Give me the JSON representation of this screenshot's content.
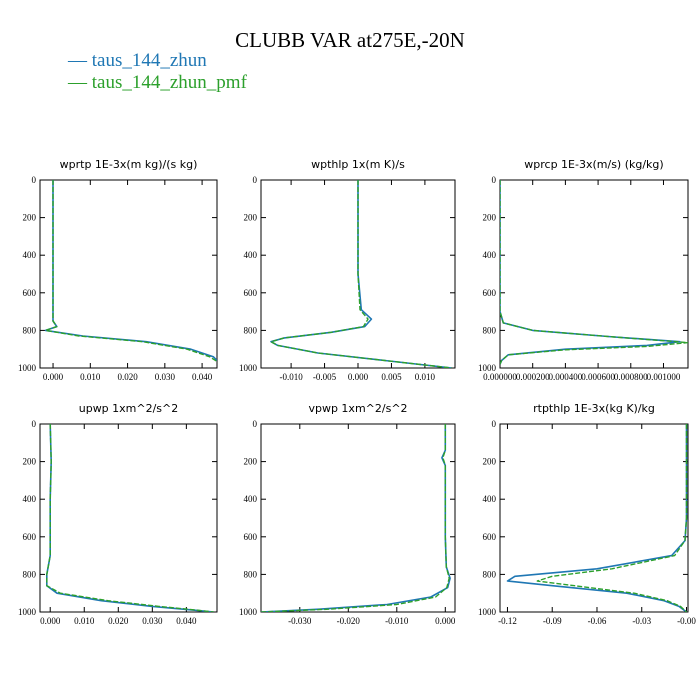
{
  "title": "CLUBB VAR at275E,-20N",
  "legend": [
    {
      "name": "taus_144_zhun",
      "color": "#1f77b4"
    },
    {
      "name": "taus_144_zhun_pmf",
      "color": "#2ca02c"
    }
  ],
  "chart_data": [
    {
      "type": "line",
      "title": "wprtp  1E-3x(m kg)/(s kg)",
      "xlim": [
        -0.0035,
        0.044
      ],
      "ylim": [
        1000,
        0
      ],
      "xticks": [
        0.0,
        0.01,
        0.02,
        0.03,
        0.04
      ],
      "xtick_labels": [
        "0.000",
        "0.010",
        "0.020",
        "0.030",
        "0.040"
      ],
      "yticks": [
        0,
        200,
        400,
        600,
        800,
        1000
      ],
      "series": [
        {
          "name": "taus_144_zhun",
          "x": [
            0,
            0,
            0,
            0,
            0.001,
            -0.002,
            0.008,
            0.025,
            0.037,
            0.043,
            0.044
          ],
          "y": [
            0,
            300,
            600,
            750,
            780,
            800,
            830,
            860,
            900,
            940,
            960
          ]
        },
        {
          "name": "taus_144_zhun_pmf",
          "x": [
            0,
            0,
            0,
            0,
            0.001,
            -0.002,
            0.007,
            0.024,
            0.036,
            0.042,
            0.044
          ],
          "y": [
            0,
            300,
            600,
            750,
            780,
            800,
            830,
            860,
            900,
            940,
            965
          ]
        }
      ]
    },
    {
      "type": "line",
      "title": "wpthlp  1x(m K)/s",
      "xlim": [
        -0.0145,
        0.0145
      ],
      "ylim": [
        1000,
        0
      ],
      "xticks": [
        -0.01,
        -0.005,
        0.0,
        0.005,
        0.01
      ],
      "xtick_labels": [
        "-0.010",
        "-0.005",
        "0.000",
        "0.005",
        "0.010"
      ],
      "yticks": [
        0,
        200,
        400,
        600,
        800,
        1000
      ],
      "series": [
        {
          "name": "taus_144_zhun",
          "x": [
            0,
            0,
            0,
            0.0005,
            0.002,
            0.001,
            -0.004,
            -0.011,
            -0.013,
            -0.012,
            -0.006,
            0.004,
            0.014
          ],
          "y": [
            0,
            200,
            500,
            690,
            740,
            780,
            810,
            840,
            860,
            880,
            920,
            960,
            1000
          ]
        },
        {
          "name": "taus_144_zhun_pmf",
          "x": [
            0,
            0,
            0,
            0.0003,
            0.0015,
            0.0008,
            -0.004,
            -0.011,
            -0.013,
            -0.012,
            -0.006,
            0.004,
            0.014
          ],
          "y": [
            0,
            200,
            500,
            690,
            740,
            780,
            810,
            840,
            860,
            880,
            920,
            960,
            1000
          ]
        }
      ]
    },
    {
      "type": "line",
      "title": "wprcp  1E-3x(m/s) (kg/kg)",
      "xlim": [
        0.0,
        0.00115
      ],
      "ylim": [
        1000,
        0
      ],
      "xticks": [
        0.0,
        0.0002,
        0.0004,
        0.0006,
        0.0008,
        0.001
      ],
      "xtick_labels": [
        "0.000000",
        "0.000200",
        "0.000400",
        "0.000600",
        "0.000800",
        "0.001000"
      ],
      "yticks": [
        0,
        200,
        400,
        600,
        800,
        1000
      ],
      "series": [
        {
          "name": "taus_144_zhun",
          "x": [
            0,
            0,
            0,
            2e-05,
            0.0002,
            0.0007,
            0.0011,
            0.0009,
            0.0004,
            5e-05,
            1e-05,
            0
          ],
          "y": [
            0,
            400,
            700,
            760,
            800,
            835,
            860,
            880,
            900,
            930,
            960,
            980
          ]
        },
        {
          "name": "taus_144_zhun_pmf",
          "x": [
            0,
            0,
            0,
            2e-05,
            0.0002,
            0.0007,
            0.00115,
            0.0009,
            0.0004,
            5e-05,
            1e-05,
            0
          ],
          "y": [
            0,
            400,
            700,
            760,
            800,
            835,
            865,
            885,
            903,
            930,
            960,
            980
          ]
        }
      ]
    },
    {
      "type": "line",
      "title": "upwp  1xm^2/s^2",
      "xlim": [
        -0.003,
        0.049
      ],
      "ylim": [
        1000,
        0
      ],
      "xticks": [
        0.0,
        0.01,
        0.02,
        0.03,
        0.04
      ],
      "xtick_labels": [
        "0.000",
        "0.010",
        "0.020",
        "0.030",
        "0.040"
      ],
      "yticks": [
        0,
        200,
        400,
        600,
        800,
        1000
      ],
      "series": [
        {
          "name": "taus_144_zhun",
          "x": [
            0,
            0.0003,
            0,
            0,
            -0.001,
            -0.001,
            0.002,
            0.015,
            0.03,
            0.042,
            0.048
          ],
          "y": [
            0,
            200,
            400,
            700,
            800,
            860,
            900,
            940,
            970,
            990,
            1000
          ]
        },
        {
          "name": "taus_144_zhun_pmf",
          "x": [
            0,
            0.0003,
            0,
            0,
            -0.001,
            -0.001,
            0.003,
            0.017,
            0.032,
            0.043,
            0.048
          ],
          "y": [
            0,
            200,
            400,
            700,
            800,
            860,
            900,
            940,
            970,
            990,
            1000
          ]
        }
      ]
    },
    {
      "type": "line",
      "title": "vpwp  1xm^2/s^2",
      "xlim": [
        -0.038,
        0.002
      ],
      "ylim": [
        1000,
        0
      ],
      "xticks": [
        -0.03,
        -0.02,
        -0.01,
        0.0
      ],
      "xtick_labels": [
        "-0.030",
        "-0.020",
        "-0.010",
        "0.000"
      ],
      "yticks": [
        0,
        200,
        400,
        600,
        800,
        1000
      ],
      "series": [
        {
          "name": "taus_144_zhun",
          "x": [
            0,
            0,
            -0.0007,
            0,
            0,
            0.0002,
            0.001,
            0.0005,
            -0.003,
            -0.012,
            -0.026,
            -0.038
          ],
          "y": [
            0,
            140,
            180,
            220,
            600,
            760,
            820,
            870,
            920,
            960,
            985,
            1000
          ]
        },
        {
          "name": "taus_144_zhun_pmf",
          "x": [
            0,
            0,
            -0.0005,
            0,
            0,
            0.0002,
            0.0008,
            0.0003,
            -0.002,
            -0.01,
            -0.024,
            -0.038
          ],
          "y": [
            0,
            140,
            180,
            220,
            600,
            760,
            820,
            870,
            920,
            960,
            985,
            1000
          ]
        }
      ]
    },
    {
      "type": "line",
      "title": "rtpthlp  1E-3x(kg K)/kg",
      "xlim": [
        -0.125,
        0.001
      ],
      "ylim": [
        1000,
        0
      ],
      "xticks": [
        -0.12,
        -0.09,
        -0.06,
        -0.03,
        0.0
      ],
      "xtick_labels": [
        "-0.12",
        "-0.09",
        "-0.06",
        "-0.03",
        "-0.00"
      ],
      "yticks": [
        0,
        200,
        400,
        600,
        800,
        1000
      ],
      "series": [
        {
          "name": "taus_144_zhun",
          "x": [
            0,
            0,
            -0.001,
            -0.01,
            -0.06,
            -0.115,
            -0.12,
            -0.09,
            -0.04,
            -0.015,
            -0.005,
            0
          ],
          "y": [
            0,
            500,
            620,
            700,
            770,
            810,
            835,
            860,
            900,
            940,
            970,
            1000
          ]
        },
        {
          "name": "taus_144_zhun_pmf",
          "x": [
            0,
            0,
            -0.001,
            -0.008,
            -0.05,
            -0.09,
            -0.1,
            -0.075,
            -0.035,
            -0.013,
            -0.004,
            0
          ],
          "y": [
            0,
            500,
            620,
            700,
            770,
            810,
            835,
            860,
            900,
            940,
            970,
            1000
          ]
        }
      ]
    }
  ]
}
